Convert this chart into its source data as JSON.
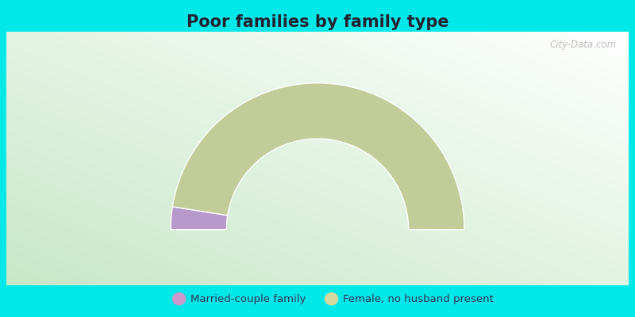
{
  "title": "Poor families by family type",
  "title_fontsize": 15,
  "slices": [
    {
      "label": "Married-couple family",
      "value": 5,
      "color": "#b899cc"
    },
    {
      "label": "Female, no husband present",
      "value": 95,
      "color": "#c2cc99"
    }
  ],
  "legend_marker_colors": [
    "#cc99cc",
    "#d4d9a0"
  ],
  "legend_labels": [
    "Married-couple family",
    "Female, no husband present"
  ],
  "background_outer": "#00e8e8",
  "outer_r": 1.0,
  "inner_r": 0.62,
  "figsize": [
    8.0,
    4.0
  ],
  "dpi": 100
}
